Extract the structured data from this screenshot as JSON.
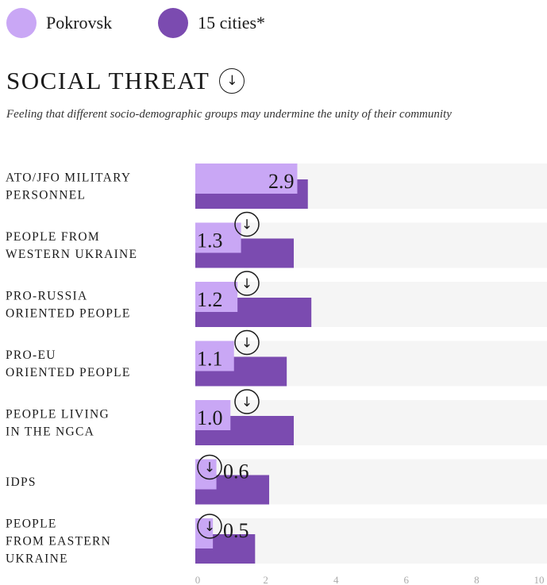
{
  "legend": [
    {
      "label": "Pokrovsk",
      "color": "#c9a7f5"
    },
    {
      "label": "15 cities*",
      "color": "#7b4bb0"
    }
  ],
  "header": {
    "title": "SOCIAL THREAT",
    "subtitle": "Feeling that different socio-demographic groups may undermine the unity of their community"
  },
  "colors": {
    "track": "#f5f5f5",
    "pokrovsk": "#c9a7f5",
    "cities": "#7b4bb0"
  },
  "chart_data": {
    "type": "bar",
    "orientation": "horizontal",
    "categories": [
      [
        "ATO/JFO MILITARY",
        "PERSONNEL"
      ],
      [
        "PEOPLE FROM",
        "WESTERN UKRAINE"
      ],
      [
        "PRO-RUSSIA",
        "ORIENTED PEOPLE"
      ],
      [
        "PRO-EU",
        "ORIENTED PEOPLE"
      ],
      [
        "PEOPLE LIVING",
        "IN THE NGCA"
      ],
      [
        "IDPS"
      ],
      [
        "PEOPLE",
        "FROM EASTERN",
        "UKRAINE"
      ]
    ],
    "series": [
      {
        "name": "Pokrovsk",
        "values": [
          2.9,
          1.3,
          1.2,
          1.1,
          1.0,
          0.6,
          0.5
        ]
      },
      {
        "name": "15 cities*",
        "values": [
          3.2,
          2.8,
          3.3,
          2.6,
          2.8,
          2.1,
          1.7
        ]
      }
    ],
    "value_labels": [
      "2.9",
      "1.3",
      "1.2",
      "1.1",
      "1.0",
      "0.6",
      "0.5"
    ],
    "down_arrow": [
      false,
      true,
      true,
      true,
      true,
      true,
      true
    ],
    "xlim": [
      0,
      10
    ],
    "xticks": [
      "0",
      "2",
      "4",
      "6",
      "8",
      "10"
    ],
    "arrow_glyph": "↓"
  }
}
